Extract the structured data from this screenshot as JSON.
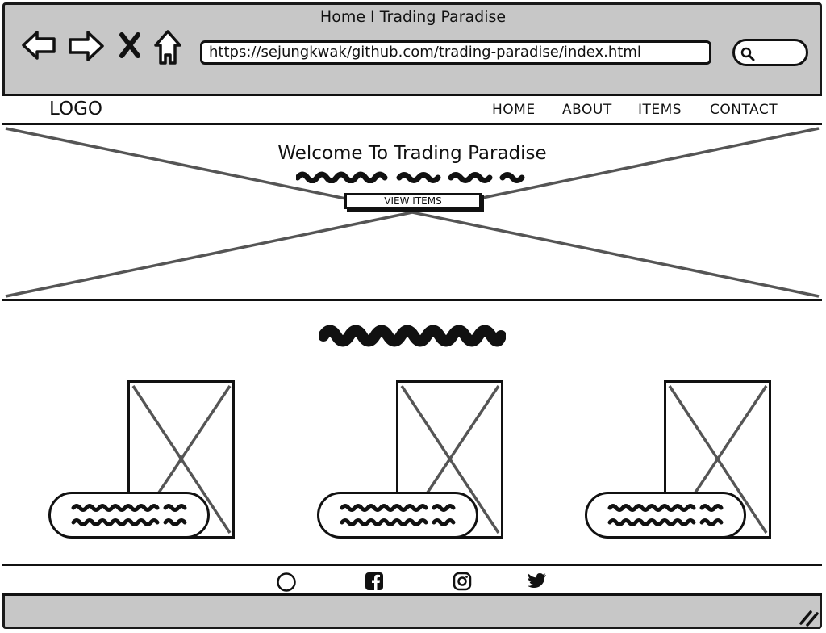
{
  "window": {
    "title": "Home I Trading Paradise",
    "url": "https://sejungkwak/github.com/trading-paradise/index.html"
  },
  "toolbar": {
    "icons": [
      "back-arrow-icon",
      "forward-arrow-icon",
      "close-icon",
      "home-icon"
    ],
    "search_icon": "search-icon"
  },
  "site": {
    "logo": "LOGO",
    "nav": [
      "HOME",
      "ABOUT",
      "ITEMS",
      "CONTACT"
    ]
  },
  "hero": {
    "title": "Welcome To Trading Paradise",
    "button": "VIEW ITEMS"
  },
  "footer": {
    "social_icons": [
      "circle-icon",
      "facebook-icon",
      "instagram-icon",
      "twitter-icon"
    ]
  },
  "colors": {
    "chrome": "#c7c7c7",
    "ink": "#111111",
    "placeholder_line": "#555555"
  }
}
